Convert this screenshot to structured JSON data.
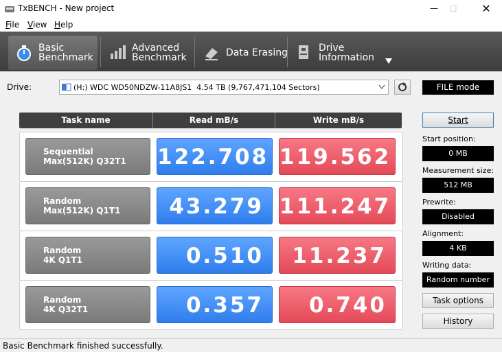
{
  "window": {
    "title": "TxBENCH - New project"
  },
  "menu": [
    "File",
    "View",
    "Help"
  ],
  "tabs": [
    {
      "lines": [
        "Basic",
        "Benchmark"
      ]
    },
    {
      "lines": [
        "Advanced",
        "Benchmark"
      ]
    },
    {
      "lines": [
        "Data Erasing"
      ]
    },
    {
      "lines": [
        "Drive",
        "Information"
      ]
    }
  ],
  "drive": {
    "label": "Drive:",
    "selected": "(H:) WDC WD50NDZW-11A8JS1  4.54 TB (9,767,471,104 Sectors)",
    "mode": "FILE mode"
  },
  "table": {
    "headers": [
      "Task name",
      "Read mB/s",
      "Write mB/s"
    ],
    "rows": [
      {
        "task": [
          "Sequential",
          "Max(512K) Q32T1"
        ],
        "read": "122.708",
        "write": "119.562"
      },
      {
        "task": [
          "Random",
          "Max(512K) Q1T1"
        ],
        "read": "43.279",
        "write": "111.247"
      },
      {
        "task": [
          "Random",
          "4K Q1T1"
        ],
        "read": "0.510",
        "write": "11.237"
      },
      {
        "task": [
          "Random",
          "4K Q32T1"
        ],
        "read": "0.357",
        "write": "0.740"
      }
    ]
  },
  "panel": {
    "start": "Start",
    "fields": [
      {
        "label": "Start position:",
        "value": "0 MB"
      },
      {
        "label": "Measurement size:",
        "value": "512 MB"
      },
      {
        "label": "Prewrite:",
        "value": "Disabled"
      },
      {
        "label": "Alignment:",
        "value": "4 KB"
      },
      {
        "label": "Writing data:",
        "value": "Random number"
      }
    ],
    "task_options": "Task options",
    "history": "History"
  },
  "status": "Basic Benchmark finished successfully."
}
